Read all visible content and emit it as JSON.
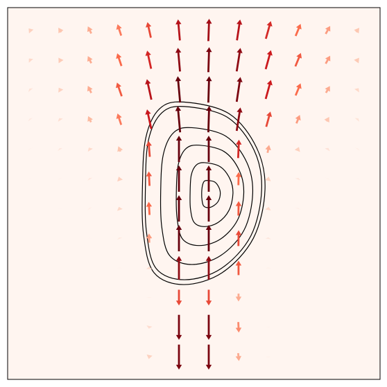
{
  "chart_data": {
    "type": "quiver",
    "xlim": [
      0,
      100
    ],
    "ylim": [
      0,
      100
    ],
    "background": "#fff5f0",
    "cmap": [
      "#fff5f0",
      "#fcbba1",
      "#fb6a4a",
      "#cb181d",
      "#67000d"
    ],
    "clim": [
      0,
      1
    ],
    "contour_color": "#000000",
    "x": [
      6,
      14,
      22,
      30,
      38,
      46,
      54,
      62,
      70,
      78,
      86,
      94
    ],
    "y": [
      94,
      86,
      78,
      70,
      62,
      54,
      46,
      38,
      30,
      22,
      14,
      6
    ],
    "u": [
      [
        -0.1,
        -0.11,
        -0.13,
        -0.14,
        -0.13,
        -0.07,
        0.03,
        0.12,
        0.19,
        0.19,
        0.17,
        0.12
      ],
      [
        -0.08,
        -0.1,
        -0.13,
        -0.16,
        -0.15,
        -0.08,
        0.03,
        0.14,
        0.2,
        0.21,
        0.17,
        0.11
      ],
      [
        -0.05,
        -0.08,
        -0.13,
        -0.18,
        -0.17,
        -0.09,
        0.03,
        0.14,
        0.2,
        0.19,
        0.15,
        0.07
      ],
      [
        -0.03,
        -0.05,
        -0.11,
        -0.14,
        -0.16,
        -0.09,
        0.03,
        0.14,
        0.16,
        0.13,
        0.1,
        0.05
      ],
      [
        -0.01,
        -0.03,
        -0.06,
        -0.08,
        -0.05,
        0,
        0,
        0.03,
        0.06,
        0.06,
        0.04,
        0.02
      ],
      [
        0,
        -0.01,
        -0.03,
        -0.05,
        -0.03,
        0,
        0,
        0.01,
        0.03,
        0.02,
        0.01,
        0
      ],
      [
        0,
        0,
        -0.02,
        -0.04,
        -0.03,
        0,
        0,
        0.01,
        0.02,
        0.01,
        0,
        0
      ],
      [
        0,
        0,
        0,
        -0.02,
        -0.01,
        0,
        0,
        0.01,
        0.01,
        0,
        0,
        0
      ],
      [
        0,
        0,
        0,
        0,
        0,
        0,
        0,
        0,
        0,
        0,
        0,
        0
      ],
      [
        0,
        0,
        0,
        0,
        0,
        0,
        0,
        0,
        0,
        0,
        0,
        0
      ],
      [
        0,
        0,
        0,
        0,
        -0.02,
        0,
        0,
        0.02,
        0,
        0,
        0,
        0
      ],
      [
        0,
        0,
        0,
        0,
        -0.03,
        0,
        0,
        0.03,
        0,
        0,
        0,
        0
      ]
    ],
    "v": [
      [
        0.12,
        0.17,
        0.27,
        0.43,
        0.59,
        0.8,
        0.85,
        0.79,
        0.67,
        0.46,
        0.3,
        0.16
      ],
      [
        0.09,
        0.15,
        0.27,
        0.48,
        0.69,
        0.9,
        0.95,
        0.89,
        0.72,
        0.51,
        0.3,
        0.15
      ],
      [
        0.06,
        0.13,
        0.27,
        0.52,
        0.78,
        1.0,
        1.0,
        0.94,
        0.72,
        0.46,
        0.26,
        0.1
      ],
      [
        0.04,
        0.08,
        0.23,
        0.43,
        0.74,
        1.0,
        1.0,
        0.89,
        0.58,
        0.32,
        0.17,
        0.06
      ],
      [
        0.02,
        0.05,
        0.1,
        0.2,
        0.6,
        1.0,
        1.0,
        0.7,
        0.3,
        0.15,
        0.07,
        0.03
      ],
      [
        0.01,
        0.02,
        0.05,
        0.15,
        0.55,
        1.0,
        1.0,
        0.5,
        0.15,
        0.06,
        0.02,
        0.01
      ],
      [
        0,
        0.01,
        0.03,
        0.12,
        0.5,
        1.0,
        1.0,
        0.55,
        0.12,
        0.03,
        0.01,
        0
      ],
      [
        0,
        0,
        0.01,
        0.05,
        0.35,
        1.0,
        1.0,
        0.6,
        0.06,
        0.01,
        0,
        0
      ],
      [
        0,
        0,
        0,
        0.02,
        0.1,
        0.9,
        0.9,
        0.55,
        0.03,
        0,
        0,
        0
      ],
      [
        0,
        0,
        0,
        0,
        -0.03,
        -0.6,
        -0.6,
        -0.3,
        0,
        0,
        0,
        0
      ],
      [
        0,
        0,
        0,
        0,
        -0.1,
        -0.95,
        -0.95,
        -0.4,
        -0.02,
        0,
        0,
        0
      ],
      [
        0,
        0,
        0,
        0,
        -0.15,
        -0.95,
        -0.95,
        -0.3,
        -0.03,
        0,
        0,
        0
      ]
    ],
    "contours": [
      {
        "x": [
          47.3,
          59.4,
          66.9,
          69.1,
          66,
          57.6,
          47.3,
          39.3,
          36.5,
          36.2,
          37.1,
          40.8
        ],
        "y": [
          74.6,
          71.5,
          62.2,
          51,
          38,
          28.7,
          25.5,
          28.7,
          38.9,
          51.9,
          65,
          72.8
        ]
      },
      {
        "x": [
          47.5,
          59,
          66.2,
          68.2,
          65.3,
          57.3,
          47.5,
          39.9,
          37.3,
          37,
          37.8,
          41.4
        ],
        "y": [
          73.4,
          70.5,
          61.6,
          51,
          38.6,
          29.8,
          26.8,
          29.8,
          39.5,
          51.9,
          64.3,
          71.7
        ]
      },
      {
        "x": [
          49.5,
          58.6,
          64.2,
          65.8,
          63.5,
          57.2,
          49.5,
          43.5,
          41.4,
          41.1,
          41.8,
          44.6
        ],
        "y": [
          67.7,
          65.4,
          58.4,
          50,
          40.2,
          33.3,
          30.9,
          33.3,
          40.9,
          50.7,
          60.5,
          66.4
        ]
      },
      {
        "x": [
          51.4,
          58.1,
          62.2,
          63.4,
          61.7,
          57.1,
          51.4,
          47,
          45.5,
          45.3,
          45.8,
          47.8
        ],
        "y": [
          63,
          61.3,
          56.2,
          50,
          42.8,
          37.7,
          36,
          37.7,
          43.3,
          50.5,
          57.7,
          62
        ]
      },
      {
        "x": [
          52.9,
          57.1,
          59.7,
          60.5,
          59.4,
          56.5,
          52.9,
          50.1,
          49.1,
          49,
          49.3,
          50.6
        ],
        "y": [
          58.3,
          57.2,
          53.9,
          50,
          45.4,
          42.2,
          41.1,
          42.2,
          45.8,
          50.3,
          54.9,
          57.6
        ]
      },
      {
        "x": [
          53.8,
          55.6,
          56.7,
          57.1,
          56.6,
          55.3,
          53.8,
          52.6,
          52.2,
          52.1,
          52.3,
          52.8
        ],
        "y": [
          53.5,
          53.1,
          51.7,
          50,
          48,
          46.7,
          46.2,
          46.7,
          48.2,
          50.1,
          52.1,
          53.3
        ]
      }
    ]
  }
}
